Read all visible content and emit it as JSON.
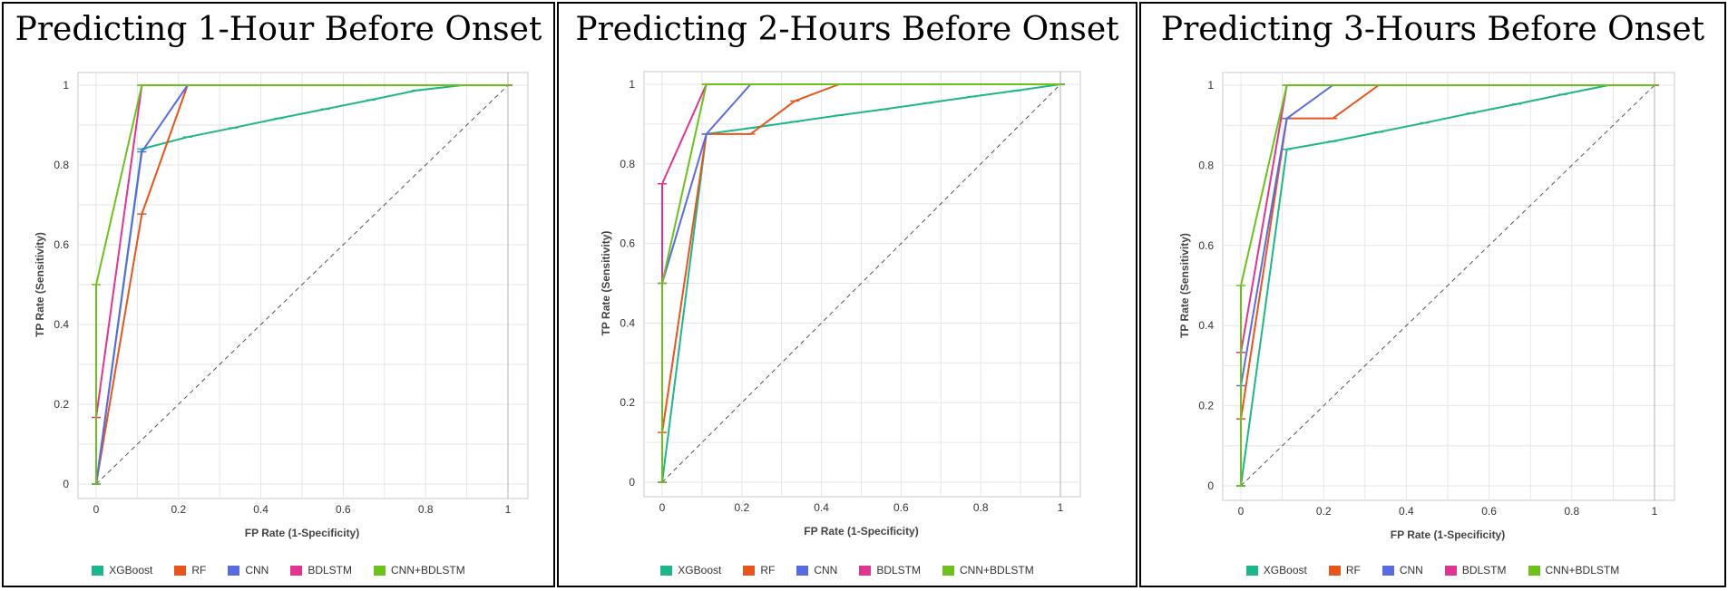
{
  "chart_data": [
    {
      "type": "line",
      "title": "Predicting 1-Hour Before Onset",
      "xlabel": "FP Rate (1-Specificity)",
      "ylabel": "TP Rate (Sensitivity)",
      "xlim": [
        0,
        1
      ],
      "ylim": [
        0,
        1
      ],
      "xticks": [
        "0",
        "0.2",
        "0.4",
        "0.6",
        "0.8",
        "1"
      ],
      "yticks": [
        "0",
        "0.2",
        "0.4",
        "0.6",
        "0.8",
        "1"
      ],
      "grid": true,
      "legend_position": "bottom",
      "series": [
        {
          "name": "XGBoost",
          "color": "#1fb58a",
          "x": [
            0,
            0.111,
            0.222,
            0.333,
            0.444,
            0.556,
            0.667,
            0.778,
            0.889,
            1
          ],
          "y": [
            0,
            0.84,
            0.87,
            0.893,
            0.917,
            0.94,
            0.963,
            0.987,
            1,
            1
          ]
        },
        {
          "name": "RF",
          "color": "#e8541c",
          "x": [
            0,
            0.111,
            0.222,
            1
          ],
          "y": [
            0,
            0.677,
            1,
            1
          ]
        },
        {
          "name": "CNN",
          "color": "#5a6be0",
          "x": [
            0,
            0.111,
            0.222,
            1
          ],
          "y": [
            0,
            0.833,
            1,
            1
          ]
        },
        {
          "name": "BDLSTM",
          "color": "#e0358f",
          "x": [
            0,
            0.111,
            1
          ],
          "y": [
            0.167,
            1,
            1
          ]
        },
        {
          "name": "CNN+BDLSTM",
          "color": "#6cc11c",
          "x": [
            0,
            0,
            0.111,
            0.222,
            0.333,
            0.444,
            0.556,
            0.667,
            0.778,
            0.889,
            1
          ],
          "y": [
            0,
            0.5,
            1,
            1,
            1,
            1,
            1,
            1,
            1,
            1,
            1
          ]
        }
      ]
    },
    {
      "type": "line",
      "title": "Predicting 2-Hours Before Onset",
      "xlabel": "FP Rate (1-Specificity)",
      "ylabel": "TP Rate (Sensitivity)",
      "xlim": [
        0,
        1
      ],
      "ylim": [
        0,
        1
      ],
      "xticks": [
        "0",
        "0.2",
        "0.4",
        "0.6",
        "0.8",
        "1"
      ],
      "yticks": [
        "0",
        "0.2",
        "0.4",
        "0.6",
        "0.8",
        "1"
      ],
      "grid": true,
      "legend_position": "bottom",
      "series": [
        {
          "name": "XGBoost",
          "color": "#1fb58a",
          "x": [
            0,
            0.111,
            0.222,
            0.333,
            0.444,
            0.556,
            0.667,
            0.778,
            0.889,
            1
          ],
          "y": [
            0,
            0.875,
            0.89,
            0.906,
            0.922,
            0.937,
            0.953,
            0.969,
            0.984,
            1
          ]
        },
        {
          "name": "RF",
          "color": "#e8541c",
          "x": [
            0,
            0,
            0.111,
            0.222,
            0.333,
            0.444,
            1
          ],
          "y": [
            0,
            0.125,
            0.875,
            0.875,
            0.958,
            1,
            1
          ]
        },
        {
          "name": "CNN",
          "color": "#5a6be0",
          "x": [
            0,
            0,
            0.111,
            0.222,
            1
          ],
          "y": [
            0,
            0.5,
            0.875,
            1,
            1
          ]
        },
        {
          "name": "BDLSTM",
          "color": "#e0358f",
          "x": [
            0,
            0,
            0.111,
            1
          ],
          "y": [
            0.5,
            0.75,
            1,
            1
          ]
        },
        {
          "name": "CNN+BDLSTM",
          "color": "#6cc11c",
          "x": [
            0,
            0,
            0.111,
            0.222,
            0.333,
            0.444,
            0.556,
            0.667,
            0.778,
            0.889,
            1
          ],
          "y": [
            0,
            0.5,
            1,
            1,
            1,
            1,
            1,
            1,
            1,
            1,
            1
          ]
        }
      ]
    },
    {
      "type": "line",
      "title": "Predicting 3-Hours Before Onset",
      "xlabel": "FP Rate (1-Specificity)",
      "ylabel": "TP Rate (Sensitivity)",
      "xlim": [
        0,
        1
      ],
      "ylim": [
        0,
        1
      ],
      "xticks": [
        "0",
        "0.2",
        "0.4",
        "0.6",
        "0.8",
        "1"
      ],
      "yticks": [
        "0",
        "0.2",
        "0.4",
        "0.6",
        "0.8",
        "1"
      ],
      "grid": true,
      "legend_position": "bottom",
      "series": [
        {
          "name": "XGBoost",
          "color": "#1fb58a",
          "x": [
            0,
            0.111,
            0.222,
            0.333,
            0.444,
            0.556,
            0.667,
            0.778,
            0.889,
            1
          ],
          "y": [
            0,
            0.84,
            0.86,
            0.883,
            0.906,
            0.93,
            0.953,
            0.977,
            1,
            1
          ]
        },
        {
          "name": "RF",
          "color": "#e8541c",
          "x": [
            0,
            0,
            0.111,
            0.222,
            0.333,
            1
          ],
          "y": [
            0,
            0.167,
            0.917,
            0.917,
            1,
            1
          ]
        },
        {
          "name": "CNN",
          "color": "#5a6be0",
          "x": [
            0,
            0,
            0.111,
            0.222,
            1
          ],
          "y": [
            0,
            0.25,
            0.917,
            1,
            1
          ]
        },
        {
          "name": "BDLSTM",
          "color": "#e0358f",
          "x": [
            0,
            0.111,
            1
          ],
          "y": [
            0.333,
            1,
            1
          ]
        },
        {
          "name": "CNN+BDLSTM",
          "color": "#6cc11c",
          "x": [
            0,
            0,
            0.111,
            0.222,
            0.333,
            0.444,
            0.556,
            0.667,
            0.778,
            0.889,
            1
          ],
          "y": [
            0,
            0.5,
            1,
            1,
            1,
            1,
            1,
            1,
            1,
            1,
            1
          ]
        }
      ]
    }
  ]
}
